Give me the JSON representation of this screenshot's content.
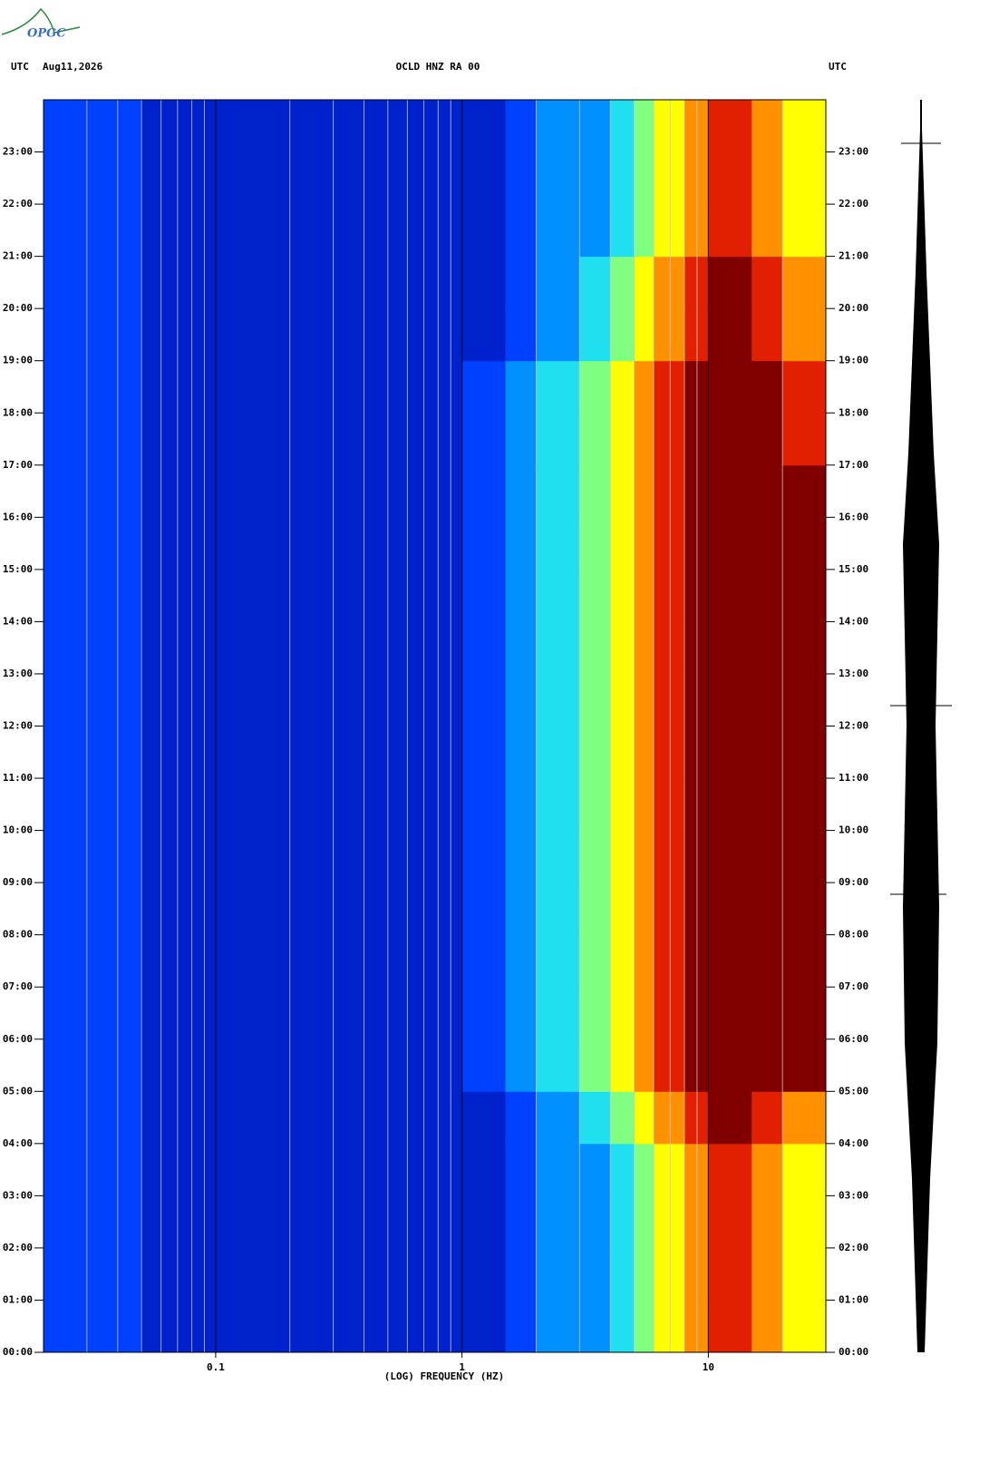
{
  "logo": "OPGC",
  "chart_data": {
    "type": "spectrogram",
    "header_left": "UTC",
    "date": "Aug11,2026",
    "title": "OCLD HNZ RA 00",
    "header_right": "UTC",
    "xlabel": "(LOG) FREQUENCY (HZ)",
    "xscale": "log",
    "xlim": [
      0.02,
      30
    ],
    "xticks": [
      {
        "value": 0.1,
        "label": "0.1"
      },
      1,
      10
    ],
    "xgrid": [
      0.03,
      0.04,
      0.05,
      0.06,
      0.07,
      0.08,
      0.09,
      0.2,
      0.3,
      0.4,
      0.5,
      0.6,
      0.7,
      0.8,
      0.9,
      2,
      3,
      4,
      5,
      6,
      7,
      8,
      9,
      20
    ],
    "ylim": [
      0,
      24
    ],
    "yticks": [
      {
        "value": 0,
        "label": "00:00"
      },
      {
        "value": 1,
        "label": "01:00"
      },
      {
        "value": 2,
        "label": "02:00"
      },
      {
        "value": 3,
        "label": "03:00"
      },
      {
        "value": 4,
        "label": "04:00"
      },
      {
        "value": 5,
        "label": "05:00"
      },
      {
        "value": 6,
        "label": "06:00"
      },
      {
        "value": 7,
        "label": "07:00"
      },
      {
        "value": 8,
        "label": "08:00"
      },
      {
        "value": 9,
        "label": "09:00"
      },
      {
        "value": 10,
        "label": "10:00"
      },
      {
        "value": 11,
        "label": "11:00"
      },
      {
        "value": 12,
        "label": "12:00"
      },
      {
        "value": 13,
        "label": "13:00"
      },
      {
        "value": 14,
        "label": "14:00"
      },
      {
        "value": 15,
        "label": "15:00"
      },
      {
        "value": 16,
        "label": "16:00"
      },
      {
        "value": 17,
        "label": "17:00"
      },
      {
        "value": 18,
        "label": "18:00"
      },
      {
        "value": 19,
        "label": "19:00"
      },
      {
        "value": 20,
        "label": "20:00"
      },
      {
        "value": 21,
        "label": "21:00"
      },
      {
        "value": 22,
        "label": "22:00"
      },
      {
        "value": 23,
        "label": "23:00"
      }
    ],
    "colormap": [
      "#00008f",
      "#0022cc",
      "#0040ff",
      "#0090ff",
      "#20e0f0",
      "#80ff80",
      "#ffff00",
      "#ff9000",
      "#e02000",
      "#800000"
    ],
    "freq_bins": [
      0.02,
      0.05,
      0.1,
      0.2,
      0.5,
      1,
      1.5,
      2,
      3,
      4,
      5,
      6,
      8,
      10,
      15,
      20,
      30
    ],
    "power": [
      [
        2,
        1,
        1,
        1,
        1,
        1,
        2,
        3,
        3,
        4,
        5,
        6,
        7,
        8,
        7,
        6
      ],
      [
        2,
        1,
        1,
        1,
        1,
        1,
        2,
        3,
        3,
        4,
        5,
        6,
        7,
        8,
        7,
        6
      ],
      [
        2,
        1,
        1,
        1,
        1,
        1,
        2,
        3,
        3,
        4,
        5,
        6,
        7,
        8,
        7,
        6
      ],
      [
        2,
        1,
        1,
        1,
        1,
        1,
        2,
        3,
        3,
        4,
        5,
        6,
        7,
        8,
        7,
        6
      ],
      [
        2,
        1,
        1,
        1,
        1,
        1,
        2,
        3,
        4,
        5,
        6,
        7,
        8,
        9,
        8,
        7
      ],
      [
        2,
        1,
        1,
        1,
        1,
        2,
        3,
        4,
        5,
        6,
        7,
        8,
        9,
        9,
        9,
        9
      ],
      [
        2,
        1,
        1,
        1,
        1,
        2,
        3,
        4,
        5,
        6,
        7,
        8,
        9,
        9,
        9,
        9
      ],
      [
        2,
        1,
        1,
        1,
        1,
        2,
        3,
        4,
        5,
        6,
        7,
        8,
        9,
        9,
        9,
        9
      ],
      [
        2,
        1,
        1,
        1,
        1,
        2,
        3,
        4,
        5,
        6,
        7,
        8,
        9,
        9,
        9,
        9
      ],
      [
        2,
        1,
        1,
        1,
        1,
        2,
        3,
        4,
        5,
        6,
        7,
        8,
        9,
        9,
        9,
        9
      ],
      [
        2,
        1,
        1,
        1,
        1,
        2,
        3,
        4,
        5,
        6,
        7,
        8,
        9,
        9,
        9,
        9
      ],
      [
        2,
        1,
        1,
        1,
        1,
        2,
        3,
        4,
        5,
        6,
        7,
        8,
        9,
        9,
        9,
        9
      ],
      [
        2,
        1,
        1,
        1,
        1,
        2,
        3,
        4,
        5,
        6,
        7,
        8,
        9,
        9,
        9,
        9
      ],
      [
        2,
        1,
        1,
        1,
        1,
        2,
        3,
        4,
        5,
        6,
        7,
        8,
        9,
        9,
        9,
        9
      ],
      [
        2,
        1,
        1,
        1,
        1,
        2,
        3,
        4,
        5,
        6,
        7,
        8,
        9,
        9,
        9,
        9
      ],
      [
        2,
        1,
        1,
        1,
        1,
        2,
        3,
        4,
        5,
        6,
        7,
        8,
        9,
        9,
        9,
        9
      ],
      [
        2,
        1,
        1,
        1,
        1,
        2,
        3,
        4,
        5,
        6,
        7,
        8,
        9,
        9,
        9,
        9
      ],
      [
        2,
        1,
        1,
        1,
        1,
        2,
        3,
        4,
        5,
        6,
        7,
        8,
        9,
        9,
        9,
        8
      ],
      [
        2,
        1,
        1,
        1,
        1,
        2,
        3,
        4,
        5,
        6,
        7,
        8,
        9,
        9,
        9,
        8
      ],
      [
        2,
        1,
        1,
        1,
        1,
        1,
        2,
        3,
        4,
        5,
        6,
        7,
        8,
        9,
        8,
        7
      ],
      [
        2,
        1,
        1,
        1,
        1,
        1,
        2,
        3,
        4,
        5,
        6,
        7,
        8,
        9,
        8,
        7
      ],
      [
        2,
        1,
        1,
        1,
        1,
        1,
        2,
        3,
        3,
        4,
        5,
        6,
        7,
        8,
        7,
        6
      ],
      [
        2,
        1,
        1,
        1,
        1,
        1,
        2,
        3,
        3,
        4,
        5,
        6,
        7,
        8,
        7,
        6
      ],
      [
        2,
        1,
        1,
        1,
        1,
        1,
        2,
        3,
        3,
        4,
        5,
        6,
        7,
        8,
        7,
        6
      ]
    ]
  }
}
